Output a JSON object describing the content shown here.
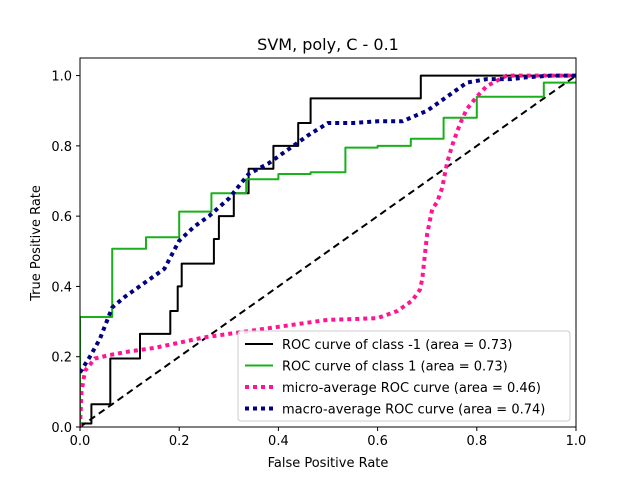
{
  "chart_data": {
    "type": "line",
    "title": "SVM, poly, C - 0.1",
    "xlabel": "False Positive Rate",
    "ylabel": "True Positive Rate",
    "xlim": [
      0,
      1
    ],
    "ylim": [
      0,
      1.05
    ],
    "xticks": [
      "0.0",
      "0.2",
      "0.4",
      "0.6",
      "0.8",
      "1.0"
    ],
    "yticks": [
      "0.0",
      "0.2",
      "0.4",
      "0.6",
      "0.8",
      "1.0"
    ],
    "grid": false,
    "legend_position": "lower-right",
    "series": [
      {
        "name": "ROC curve of class -1 (area = 0.73)",
        "color": "#000000",
        "style": "solid",
        "x": [
          0,
          0,
          0.023,
          0.023,
          0.061,
          0.061,
          0.121,
          0.121,
          0.182,
          0.182,
          0.197,
          0.197,
          0.205,
          0.205,
          0.27,
          0.27,
          0.28,
          0.28,
          0.31,
          0.31,
          0.34,
          0.34,
          0.39,
          0.39,
          0.44,
          0.44,
          0.465,
          0.465,
          0.496,
          0.496,
          0.687,
          0.687,
          1.0
        ],
        "y": [
          0,
          0.01,
          0.01,
          0.065,
          0.065,
          0.195,
          0.195,
          0.265,
          0.265,
          0.33,
          0.33,
          0.4,
          0.4,
          0.465,
          0.465,
          0.535,
          0.535,
          0.6,
          0.6,
          0.665,
          0.665,
          0.735,
          0.735,
          0.8,
          0.8,
          0.865,
          0.865,
          0.935,
          0.935,
          0.935,
          0.935,
          1.0,
          1.0
        ]
      },
      {
        "name": "ROC curve of class 1 (area = 0.73)",
        "color": "#1ab01a",
        "style": "solid",
        "x": [
          0,
          0,
          0.065,
          0.065,
          0.133,
          0.133,
          0.2,
          0.2,
          0.265,
          0.265,
          0.335,
          0.335,
          0.4,
          0.4,
          0.465,
          0.465,
          0.535,
          0.535,
          0.6,
          0.6,
          0.667,
          0.667,
          0.733,
          0.733,
          0.8,
          0.8,
          0.935,
          0.935,
          1.0
        ],
        "y": [
          0,
          0.313,
          0.313,
          0.507,
          0.507,
          0.54,
          0.54,
          0.613,
          0.613,
          0.665,
          0.665,
          0.705,
          0.705,
          0.72,
          0.72,
          0.725,
          0.725,
          0.795,
          0.795,
          0.8,
          0.8,
          0.82,
          0.82,
          0.88,
          0.88,
          0.94,
          0.94,
          0.98,
          0.98
        ]
      },
      {
        "name": "micro-average ROC curve (area = 0.46)",
        "color": "#ff1493",
        "style": "dotted",
        "x": [
          0,
          0.003,
          0.01,
          0.03,
          0.06,
          0.1,
          0.15,
          0.2,
          0.25,
          0.3,
          0.35,
          0.4,
          0.45,
          0.5,
          0.55,
          0.6,
          0.64,
          0.67,
          0.685,
          0.69,
          0.7,
          0.71,
          0.72,
          0.73,
          0.74,
          0.75,
          0.76,
          0.77,
          0.78,
          0.8,
          0.82,
          0.86,
          0.9,
          0.95,
          1.0
        ],
        "y": [
          0,
          0.1,
          0.16,
          0.195,
          0.205,
          0.215,
          0.225,
          0.24,
          0.255,
          0.265,
          0.275,
          0.285,
          0.295,
          0.305,
          0.307,
          0.31,
          0.33,
          0.36,
          0.39,
          0.42,
          0.55,
          0.62,
          0.64,
          0.68,
          0.75,
          0.8,
          0.84,
          0.875,
          0.905,
          0.94,
          0.97,
          1.0,
          1.0,
          1.0,
          1.0
        ]
      },
      {
        "name": "macro-average ROC curve (area = 0.74)",
        "color": "#000080",
        "style": "dotted",
        "x": [
          0,
          0.02,
          0.04,
          0.065,
          0.09,
          0.13,
          0.17,
          0.2,
          0.23,
          0.26,
          0.3,
          0.34,
          0.38,
          0.42,
          0.46,
          0.5,
          0.55,
          0.6,
          0.65,
          0.7,
          0.74,
          0.78,
          0.82,
          0.87,
          0.9,
          0.95,
          1.0
        ],
        "y": [
          0.155,
          0.2,
          0.25,
          0.34,
          0.37,
          0.41,
          0.45,
          0.53,
          0.57,
          0.6,
          0.65,
          0.72,
          0.75,
          0.79,
          0.83,
          0.865,
          0.865,
          0.87,
          0.87,
          0.9,
          0.94,
          0.98,
          0.99,
          0.99,
          0.995,
          1.0,
          1.0
        ]
      },
      {
        "name": "",
        "color": "#000000",
        "style": "dashed",
        "x": [
          0,
          1
        ],
        "y": [
          0,
          1
        ]
      }
    ]
  }
}
